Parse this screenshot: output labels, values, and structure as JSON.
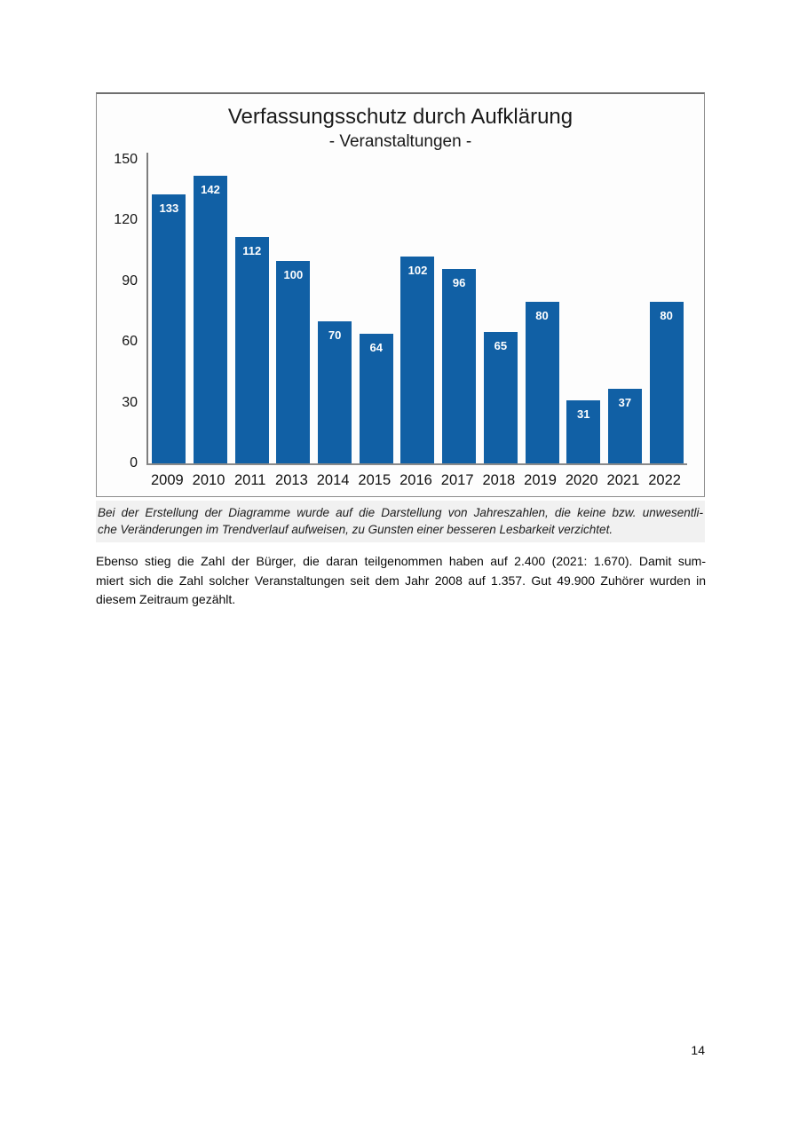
{
  "chart_data": {
    "type": "bar",
    "title": "Verfassungsschutz durch Aufklärung",
    "subtitle": "- Veranstaltungen -",
    "categories": [
      "2009",
      "2010",
      "2011",
      "2013",
      "2014",
      "2015",
      "2016",
      "2017",
      "2018",
      "2019",
      "2020",
      "2021",
      "2022"
    ],
    "values": [
      133,
      142,
      112,
      100,
      70,
      64,
      102,
      96,
      65,
      80,
      31,
      37,
      80
    ],
    "xlabel": "",
    "ylabel": "",
    "ylim": [
      0,
      150
    ],
    "yticks": [
      0,
      30,
      60,
      90,
      120,
      150
    ],
    "grid": false,
    "legend": "none",
    "bar_color": "#1160a5",
    "value_label_color": "#ffffff"
  },
  "caption": {
    "lines": [
      "Bei der Erstellung der Diagramme wurde auf die Darstellung von Jahreszahlen, die keine bzw. unwesentli-",
      "che Veränderungen im Trendverlauf aufweisen, zu Gunsten einer besseren Lesbarkeit verzichtet."
    ]
  },
  "paragraph": {
    "lines": [
      "Ebenso stieg die Zahl der Bürger, die daran teilgenommen haben auf 2.400 (2021: 1.670). Damit sum-",
      "miert sich die Zahl solcher Veranstaltungen seit dem Jahr 2008 auf 1.357. Gut 49.900 Zuhörer wurden in",
      "diesem Zeitraum gezählt."
    ]
  },
  "page": {
    "number": "14"
  }
}
